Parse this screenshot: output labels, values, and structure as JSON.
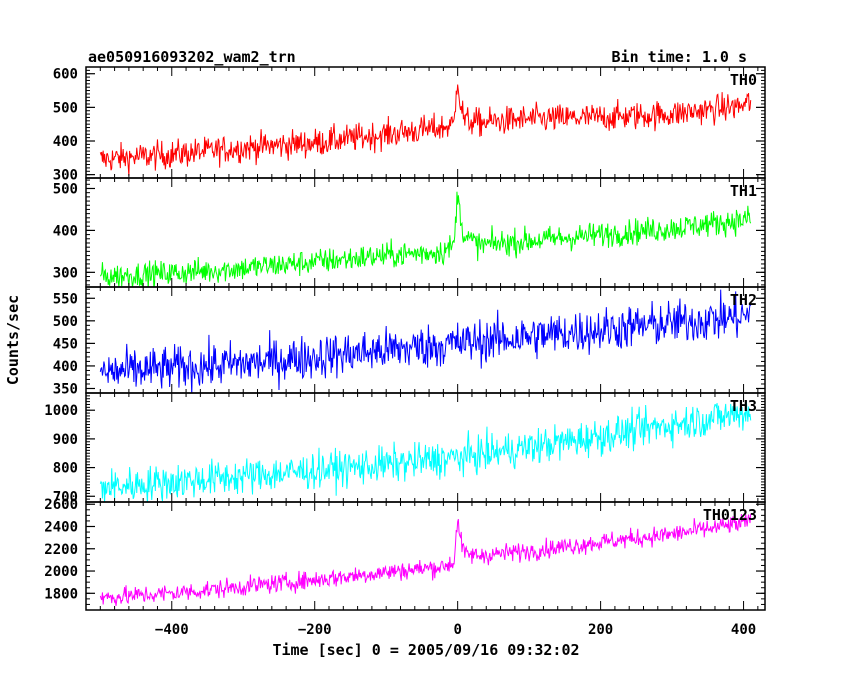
{
  "chart_data": {
    "type": "line",
    "title": "ae050916093202_wam2_trn",
    "subtitle": "Bin time: 1.0 s",
    "xlabel": "Time [sec] 0 = 2005/09/16 09:32:02",
    "ylabel": "Counts/sec",
    "xlim": [
      -520,
      430
    ],
    "x_ticks": [
      -400,
      -200,
      0,
      200,
      400
    ],
    "x_range": [
      -500,
      410
    ],
    "grid": false,
    "panels": [
      {
        "name": "TH0",
        "color": "#ff0000",
        "ylim": [
          290,
          620
        ],
        "y_ticks": [
          300,
          400,
          500,
          600
        ],
        "x": [
          -500,
          -400,
          -300,
          -200,
          -100,
          -20,
          -5,
          0,
          3,
          10,
          30,
          100,
          200,
          300,
          400,
          410
        ],
        "y": [
          345,
          360,
          380,
          395,
          420,
          440,
          450,
          600,
          520,
          460,
          455,
          465,
          470,
          480,
          505,
          520
        ],
        "noise": 30
      },
      {
        "name": "TH1",
        "color": "#00ff00",
        "ylim": [
          265,
          525
        ],
        "y_ticks": [
          300,
          400,
          500
        ],
        "x": [
          -500,
          -400,
          -300,
          -200,
          -100,
          -20,
          -5,
          0,
          3,
          10,
          30,
          100,
          200,
          300,
          400,
          410
        ],
        "y": [
          290,
          298,
          310,
          325,
          340,
          350,
          365,
          495,
          440,
          385,
          365,
          375,
          390,
          405,
          425,
          430
        ],
        "noise": 22
      },
      {
        "name": "TH2",
        "color": "#0000ff",
        "ylim": [
          340,
          575
        ],
        "y_ticks": [
          350,
          400,
          450,
          500,
          550
        ],
        "x": [
          -500,
          -400,
          -300,
          -200,
          -100,
          0,
          100,
          200,
          300,
          400,
          410
        ],
        "y": [
          385,
          395,
          405,
          420,
          435,
          450,
          465,
          480,
          495,
          510,
          515
        ],
        "noise": 35
      },
      {
        "name": "TH3",
        "color": "#00ffff",
        "ylim": [
          680,
          1060
        ],
        "y_ticks": [
          700,
          800,
          900,
          1000
        ],
        "x": [
          -500,
          -400,
          -300,
          -200,
          -100,
          0,
          100,
          200,
          300,
          400,
          410
        ],
        "y": [
          730,
          750,
          770,
          790,
          810,
          835,
          870,
          910,
          950,
          990,
          1000
        ],
        "noise": 45
      },
      {
        "name": "TH0123",
        "color": "#ff00ff",
        "ylim": [
          1650,
          2620
        ],
        "y_ticks": [
          1800,
          2000,
          2200,
          2400,
          2600
        ],
        "x": [
          -500,
          -400,
          -300,
          -200,
          -100,
          -20,
          -5,
          0,
          3,
          10,
          30,
          100,
          200,
          300,
          400,
          410
        ],
        "y": [
          1760,
          1800,
          1860,
          1920,
          1990,
          2040,
          2080,
          2500,
          2300,
          2150,
          2140,
          2180,
          2260,
          2330,
          2430,
          2450
        ],
        "noise": 60
      }
    ]
  }
}
